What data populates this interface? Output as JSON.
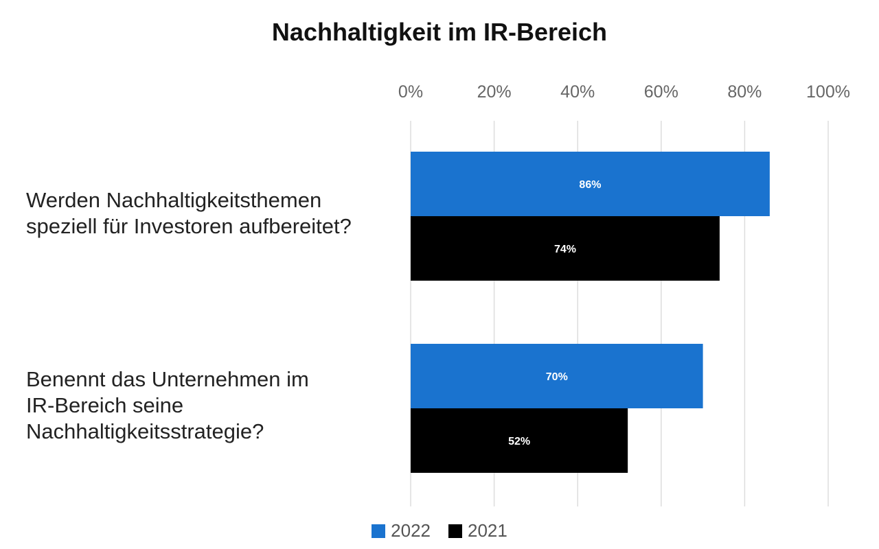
{
  "chart_data": {
    "type": "bar",
    "orientation": "horizontal",
    "title": "Nachhaltigkeit im IR-Bereich",
    "categories": [
      [
        "Werden Nachhaltigkeitsthemen",
        "speziell für Investoren aufbereitet?"
      ],
      [
        "Benennt das Unternehmen im",
        "IR-Bereich seine",
        "Nachhaltigkeitsstrategie?"
      ]
    ],
    "series": [
      {
        "name": "2022",
        "color": "#1a73cf",
        "values": [
          86,
          70
        ],
        "labels": [
          "86%",
          "70%"
        ]
      },
      {
        "name": "2021",
        "color": "#000000",
        "values": [
          74,
          52
        ],
        "labels": [
          "74%",
          "52%"
        ]
      }
    ],
    "xlim": [
      0,
      100
    ],
    "xticks": [
      0,
      20,
      40,
      60,
      80,
      100
    ],
    "xtick_labels": [
      "0%",
      "20%",
      "40%",
      "60%",
      "80%",
      "100%"
    ],
    "x_axis_position": "top",
    "grid": true,
    "legend_position": "bottom-center"
  }
}
